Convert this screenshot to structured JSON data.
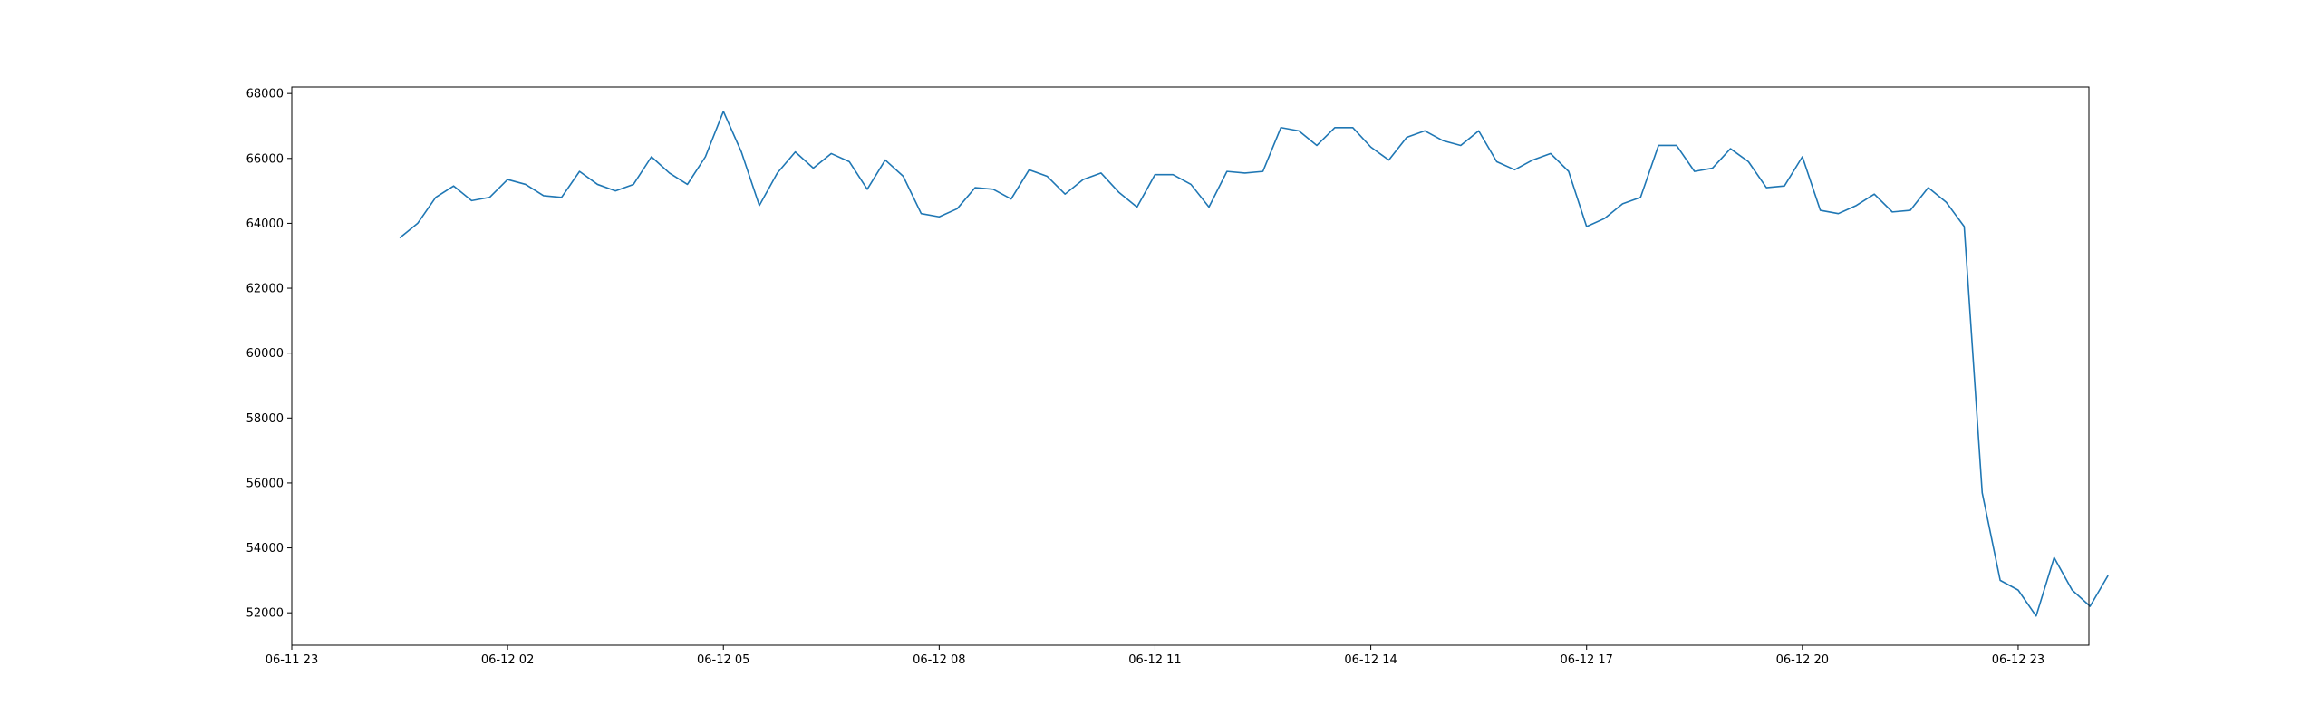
{
  "chart_data": {
    "type": "line",
    "title": "",
    "xlabel": "",
    "ylabel": "",
    "grid": false,
    "legend": "none",
    "x_start": "06-12 00:30",
    "x_step_minutes": 15,
    "xlim": [
      "06-11 23:00",
      "06-12 23:59"
    ],
    "ylim": [
      51000,
      68200
    ],
    "x_ticks": [
      "06-11 23",
      "06-12 02",
      "06-12 05",
      "06-12 08",
      "06-12 11",
      "06-12 14",
      "06-12 17",
      "06-12 20",
      "06-12 23"
    ],
    "y_ticks": [
      "52000",
      "54000",
      "56000",
      "58000",
      "60000",
      "62000",
      "64000",
      "66000",
      "68000"
    ],
    "series": [
      {
        "name": "",
        "color": "#1f77b4",
        "values": [
          63550,
          64000,
          64800,
          65150,
          64700,
          64800,
          65350,
          65200,
          64850,
          64800,
          65600,
          65200,
          65000,
          65200,
          66050,
          65550,
          65200,
          66050,
          67450,
          66200,
          64550,
          65550,
          66200,
          65700,
          66150,
          65900,
          65050,
          65950,
          65450,
          64300,
          64200,
          64450,
          65100,
          65050,
          64750,
          65650,
          65450,
          64900,
          65350,
          65550,
          64950,
          64500,
          65500,
          65500,
          65200,
          64500,
          65600,
          65550,
          65600,
          66950,
          66850,
          66400,
          66950,
          66950,
          66350,
          65950,
          66650,
          66850,
          66550,
          66400,
          66850,
          65900,
          65650,
          65950,
          66150,
          65600,
          63900,
          64150,
          64600,
          64800,
          66400,
          66400,
          65600,
          65700,
          66300,
          65900,
          65100,
          65150,
          66050,
          64400,
          64300,
          64550,
          64900,
          64350,
          64400,
          65100,
          64650,
          63900,
          55700,
          53000,
          52700,
          51900,
          53700,
          52700,
          52200,
          53150
        ]
      }
    ]
  }
}
